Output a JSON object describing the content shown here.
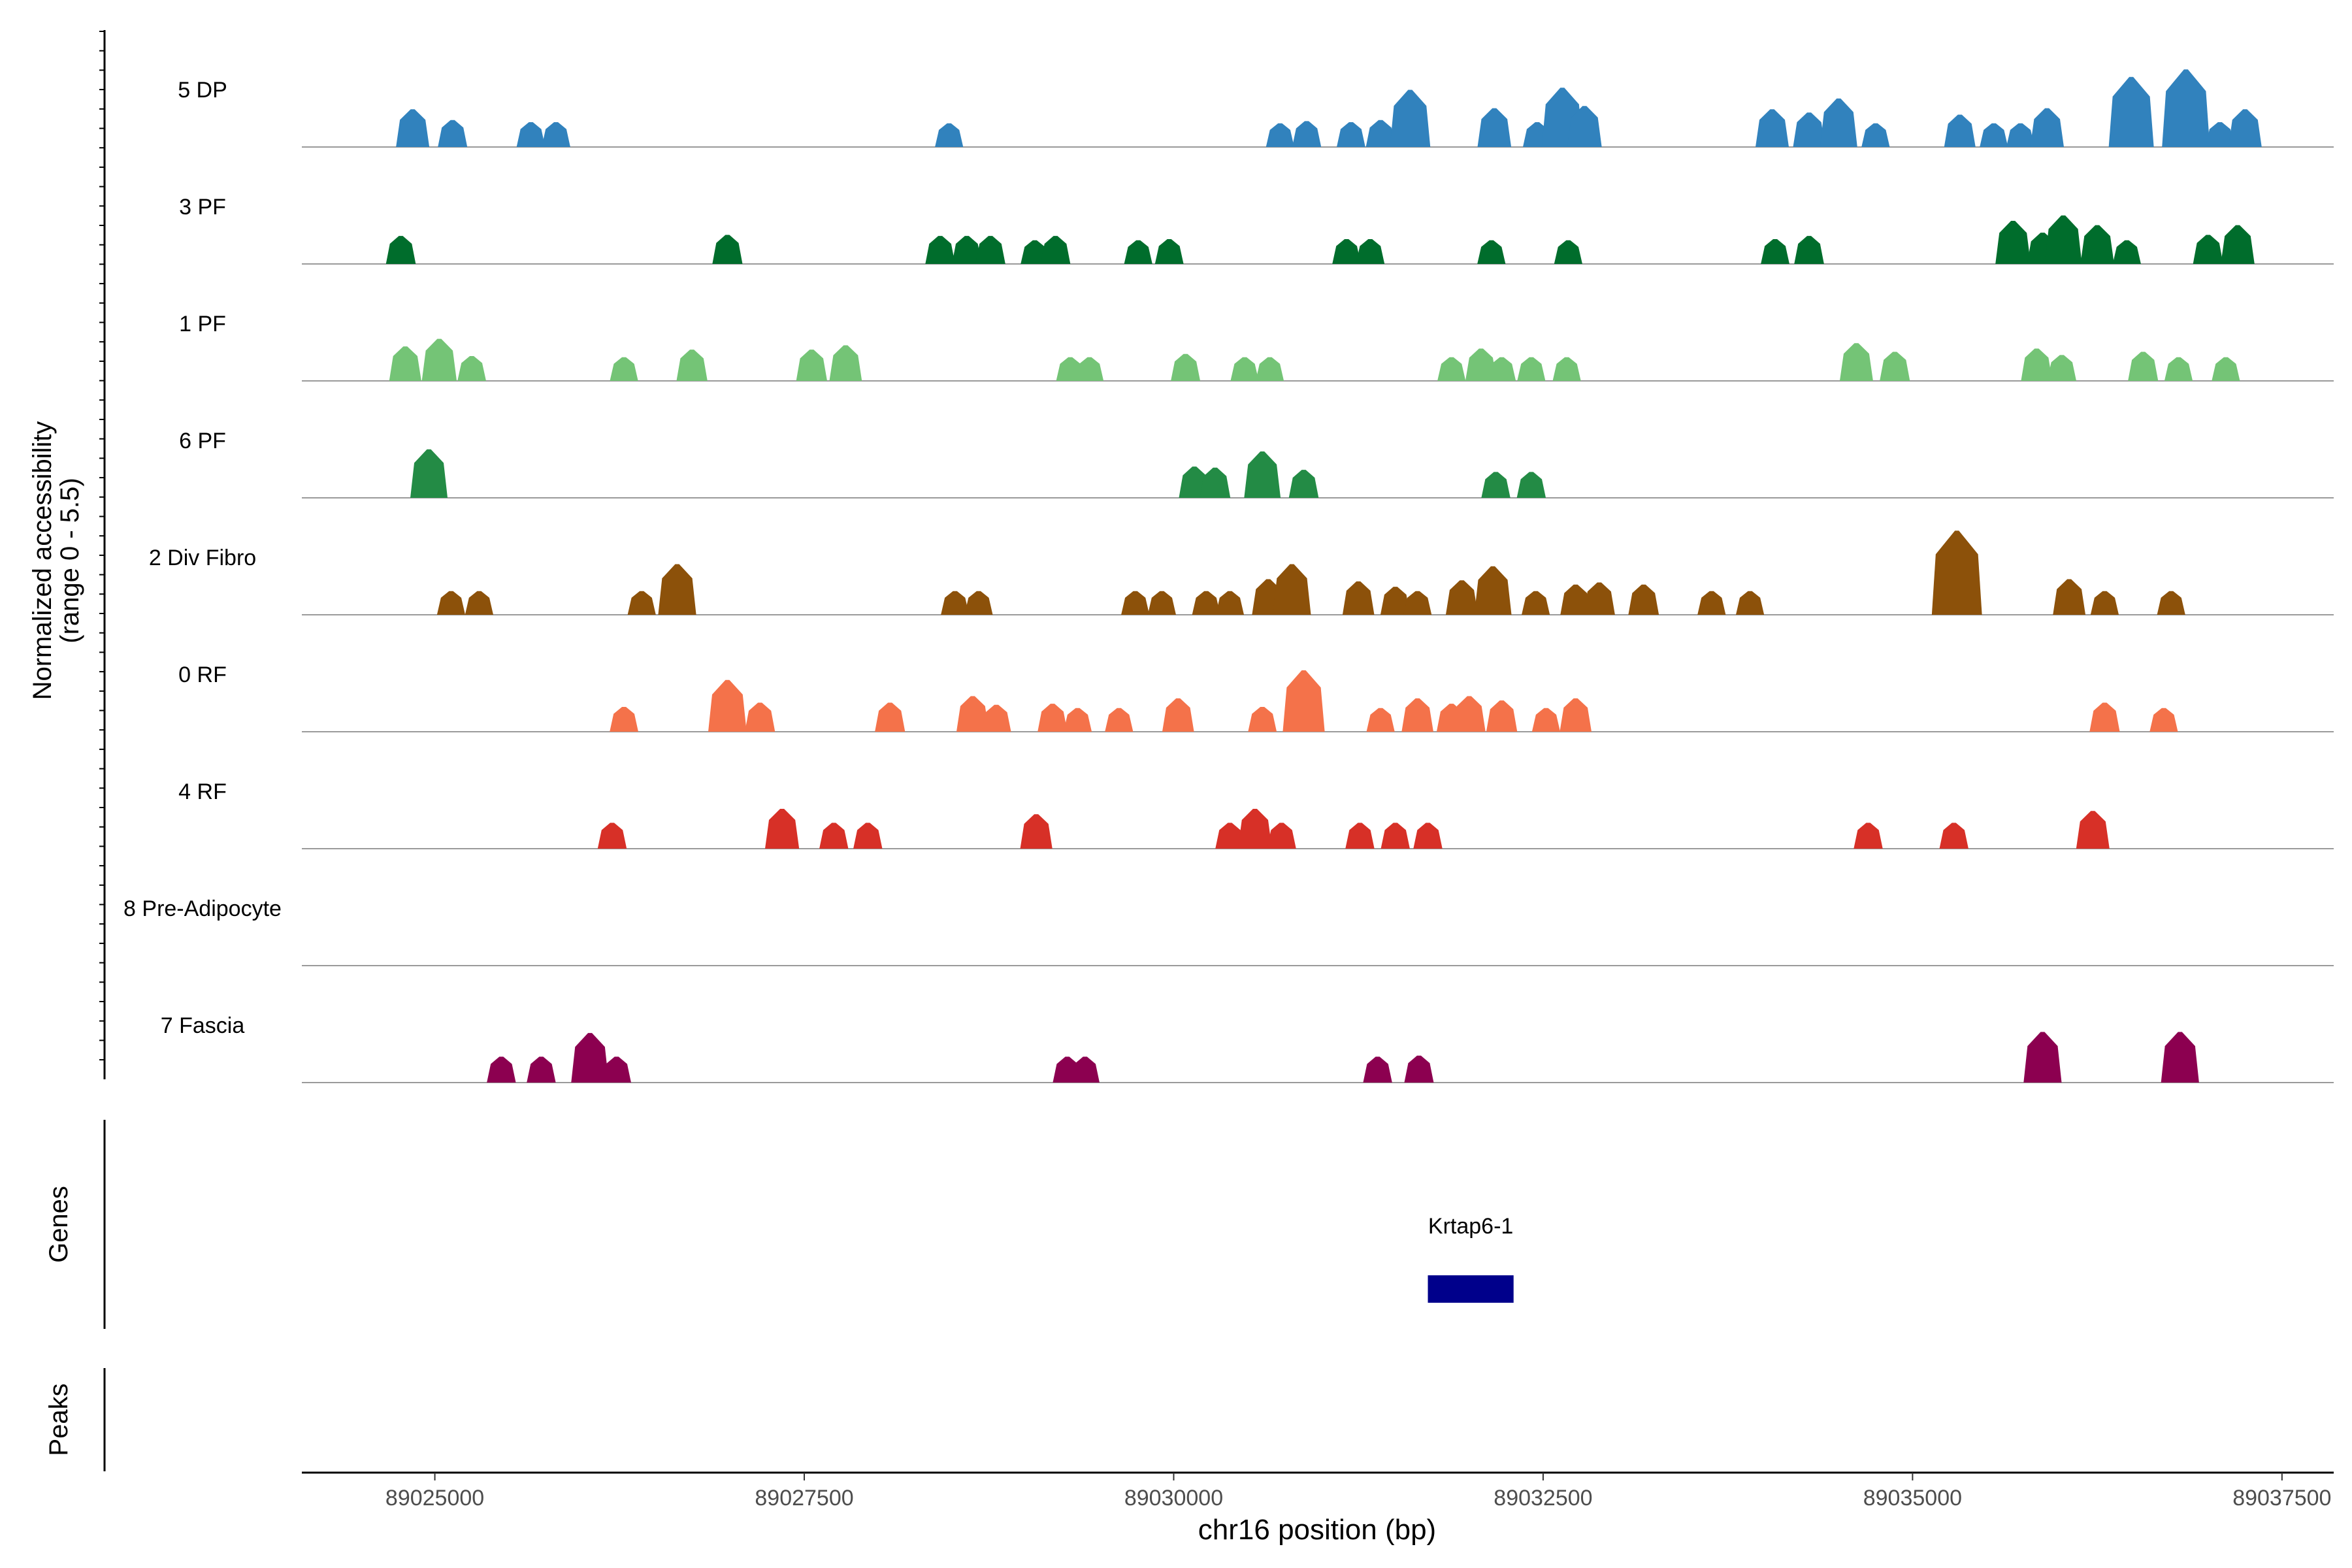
{
  "chart_data": {
    "type": "area",
    "title": "",
    "xlabel": "chr16 position (bp)",
    "ylabel_line1": "Normalized accessibility",
    "ylabel_line2": "(range 0 - 5.5)",
    "y_range": [
      0,
      5.5
    ],
    "xlim": [
      89024100,
      89037850
    ],
    "x_ticks": [
      {
        "value": 89025000,
        "label": "89025000"
      },
      {
        "value": 89027500,
        "label": "89027500"
      },
      {
        "value": 89030000,
        "label": "89030000"
      },
      {
        "value": 89032500,
        "label": "89032500"
      },
      {
        "value": 89035000,
        "label": "89035000"
      },
      {
        "value": 89037500,
        "label": "89037500"
      }
    ],
    "tracks": [
      {
        "name": "5 DP",
        "color": "#3182bd",
        "peaks": [
          [
            89024850,
            3.5
          ],
          [
            89025120,
            2.5
          ],
          [
            89025650,
            2.3
          ],
          [
            89025820,
            2.3
          ],
          [
            89028480,
            2.2
          ],
          [
            89030720,
            2.2
          ],
          [
            89030900,
            2.4
          ],
          [
            89031200,
            2.3
          ],
          [
            89031400,
            2.5
          ],
          [
            89031600,
            5.3
          ],
          [
            89032170,
            3.6
          ],
          [
            89032460,
            2.3
          ],
          [
            89032630,
            5.5
          ],
          [
            89032780,
            3.8
          ],
          [
            89034050,
            3.5
          ],
          [
            89034300,
            3.2
          ],
          [
            89034500,
            4.5
          ],
          [
            89034750,
            2.2
          ],
          [
            89035320,
            3.0
          ],
          [
            89035550,
            2.2
          ],
          [
            89035730,
            2.2
          ],
          [
            89035910,
            3.6
          ],
          [
            89036480,
            6.5
          ],
          [
            89036850,
            7.2
          ],
          [
            89037080,
            2.3
          ],
          [
            89037250,
            3.5
          ]
        ]
      },
      {
        "name": "3 PF",
        "color": "#006d2c",
        "peaks": [
          [
            89024770,
            2.6
          ],
          [
            89026980,
            2.7
          ],
          [
            89028420,
            2.6
          ],
          [
            89028600,
            2.6
          ],
          [
            89028760,
            2.6
          ],
          [
            89029060,
            2.2
          ],
          [
            89029200,
            2.6
          ],
          [
            89029760,
            2.2
          ],
          [
            89029970,
            2.3
          ],
          [
            89031170,
            2.3
          ],
          [
            89031330,
            2.3
          ],
          [
            89032150,
            2.2
          ],
          [
            89032670,
            2.2
          ],
          [
            89034070,
            2.3
          ],
          [
            89034300,
            2.6
          ],
          [
            89035680,
            4.0
          ],
          [
            89035880,
            2.9
          ],
          [
            89036020,
            4.5
          ],
          [
            89036250,
            3.6
          ],
          [
            89036450,
            2.2
          ],
          [
            89037000,
            2.7
          ],
          [
            89037200,
            3.6
          ]
        ]
      },
      {
        "name": "1 PF",
        "color": "#74c476",
        "peaks": [
          [
            89024800,
            3.2
          ],
          [
            89025030,
            3.9
          ],
          [
            89025250,
            2.3
          ],
          [
            89026280,
            2.2
          ],
          [
            89026740,
            2.9
          ],
          [
            89027550,
            2.9
          ],
          [
            89027780,
            3.3
          ],
          [
            89029300,
            2.2
          ],
          [
            89029430,
            2.2
          ],
          [
            89030080,
            2.5
          ],
          [
            89030480,
            2.2
          ],
          [
            89030650,
            2.2
          ],
          [
            89031880,
            2.2
          ],
          [
            89032080,
            3.0
          ],
          [
            89032220,
            2.2
          ],
          [
            89032420,
            2.2
          ],
          [
            89032660,
            2.2
          ],
          [
            89034620,
            3.5
          ],
          [
            89034880,
            2.7
          ],
          [
            89035840,
            3.0
          ],
          [
            89036010,
            2.4
          ],
          [
            89036560,
            2.7
          ],
          [
            89036800,
            2.2
          ],
          [
            89037120,
            2.2
          ]
        ]
      },
      {
        "name": "6 PF",
        "color": "#238b45",
        "peaks": [
          [
            89024960,
            4.5
          ],
          [
            89030140,
            2.9
          ],
          [
            89030280,
            2.8
          ],
          [
            89030600,
            4.3
          ],
          [
            89030880,
            2.6
          ],
          [
            89032180,
            2.4
          ],
          [
            89032420,
            2.4
          ]
        ]
      },
      {
        "name": "2 Div Fibro",
        "color": "#8c510a",
        "peaks": [
          [
            89025110,
            2.2
          ],
          [
            89025300,
            2.2
          ],
          [
            89026400,
            2.2
          ],
          [
            89026640,
            4.7
          ],
          [
            89028520,
            2.2
          ],
          [
            89028680,
            2.2
          ],
          [
            89029740,
            2.2
          ],
          [
            89029920,
            2.2
          ],
          [
            89030220,
            2.2
          ],
          [
            89030380,
            2.2
          ],
          [
            89030640,
            3.3
          ],
          [
            89030800,
            4.7
          ],
          [
            89031250,
            3.1
          ],
          [
            89031500,
            2.6
          ],
          [
            89031650,
            2.2
          ],
          [
            89031950,
            3.2
          ],
          [
            89032160,
            4.5
          ],
          [
            89032450,
            2.2
          ],
          [
            89032720,
            2.8
          ],
          [
            89032880,
            3.0
          ],
          [
            89033180,
            2.8
          ],
          [
            89033640,
            2.2
          ],
          [
            89033900,
            2.2
          ],
          [
            89035300,
            7.8
          ],
          [
            89036060,
            3.3
          ],
          [
            89036300,
            2.2
          ],
          [
            89036750,
            2.2
          ]
        ]
      },
      {
        "name": "0 RF",
        "color": "#f4724a",
        "peaks": [
          [
            89026280,
            2.3
          ],
          [
            89026980,
            4.8
          ],
          [
            89027200,
            2.7
          ],
          [
            89028080,
            2.7
          ],
          [
            89028640,
            3.3
          ],
          [
            89028800,
            2.5
          ],
          [
            89029180,
            2.6
          ],
          [
            89029350,
            2.2
          ],
          [
            89029630,
            2.2
          ],
          [
            89030030,
            3.1
          ],
          [
            89030600,
            2.3
          ],
          [
            89030880,
            5.7
          ],
          [
            89031400,
            2.2
          ],
          [
            89031650,
            3.1
          ],
          [
            89031880,
            2.6
          ],
          [
            89032000,
            3.3
          ],
          [
            89032220,
            2.9
          ],
          [
            89032520,
            2.2
          ],
          [
            89032720,
            3.1
          ],
          [
            89036300,
            2.7
          ],
          [
            89036700,
            2.2
          ]
        ]
      },
      {
        "name": "4 RF",
        "color": "#d73027",
        "peaks": [
          [
            89026200,
            2.4
          ],
          [
            89027350,
            3.7
          ],
          [
            89027700,
            2.4
          ],
          [
            89027930,
            2.4
          ],
          [
            89029070,
            3.2
          ],
          [
            89030380,
            2.4
          ],
          [
            89030550,
            3.7
          ],
          [
            89030730,
            2.4
          ],
          [
            89031260,
            2.4
          ],
          [
            89031500,
            2.4
          ],
          [
            89031720,
            2.4
          ],
          [
            89034700,
            2.4
          ],
          [
            89035280,
            2.4
          ],
          [
            89036220,
            3.5
          ]
        ]
      },
      {
        "name": "8 Pre-Adipocyte",
        "color": "#6a3d9a",
        "peaks": []
      },
      {
        "name": "7 Fascia",
        "color": "#8c0050",
        "peaks": [
          [
            89025450,
            2.4
          ],
          [
            89025720,
            2.4
          ],
          [
            89026050,
            4.6
          ],
          [
            89026230,
            2.4
          ],
          [
            89029280,
            2.4
          ],
          [
            89029400,
            2.4
          ],
          [
            89031380,
            2.4
          ],
          [
            89031660,
            2.5
          ],
          [
            89035880,
            4.7
          ],
          [
            89036810,
            4.7
          ]
        ]
      }
    ],
    "genes_label": "Genes",
    "peaks_label": "Peaks",
    "genes": [
      {
        "name": "Krtap6-1",
        "start": 89031720,
        "end": 89032300,
        "color": "#00008b"
      }
    ]
  }
}
